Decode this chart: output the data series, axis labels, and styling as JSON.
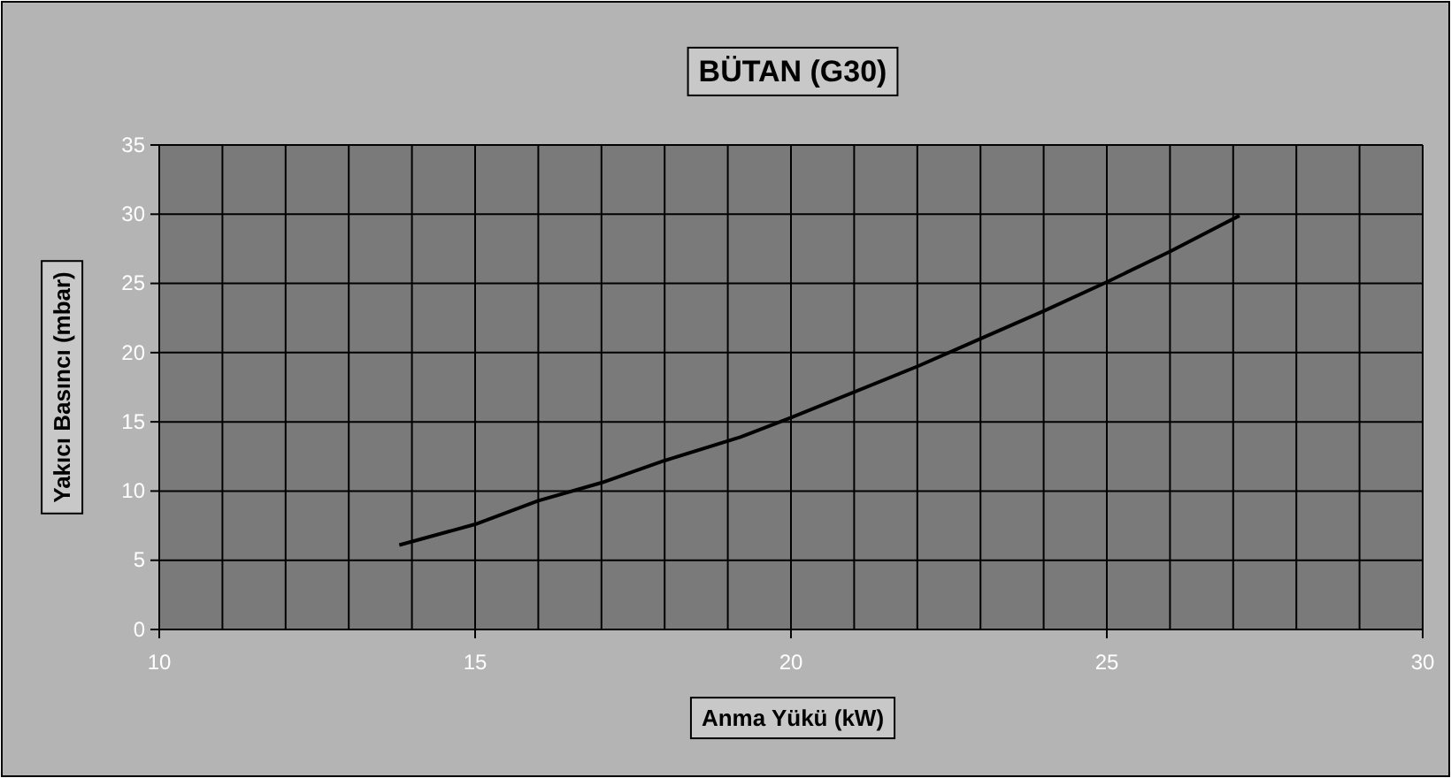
{
  "chart_data": {
    "type": "line",
    "title": "BÜTAN (G30)",
    "xlabel": "Anma Yükü (kW)",
    "ylabel": "Yakıcı Basıncı (mbar)",
    "x": [
      13.8,
      15.0,
      16.0,
      17.0,
      18.0,
      19.2,
      20.0,
      22.0,
      23.0,
      24.0,
      25.0,
      26.0,
      27.1
    ],
    "series": [
      {
        "color": "#000000",
        "values": [
          6.1,
          7.6,
          9.3,
          10.6,
          12.2,
          13.9,
          15.3,
          19.0,
          21.0,
          23.0,
          25.1,
          27.3,
          29.9
        ]
      }
    ],
    "xlim": [
      10,
      30
    ],
    "xticks": [
      10,
      15,
      20,
      25,
      30
    ],
    "ylim": [
      0,
      35
    ],
    "yticks": [
      0,
      5,
      10,
      15,
      20,
      25,
      30,
      35
    ],
    "grid": true,
    "marker": "none",
    "line_style": "solid"
  }
}
